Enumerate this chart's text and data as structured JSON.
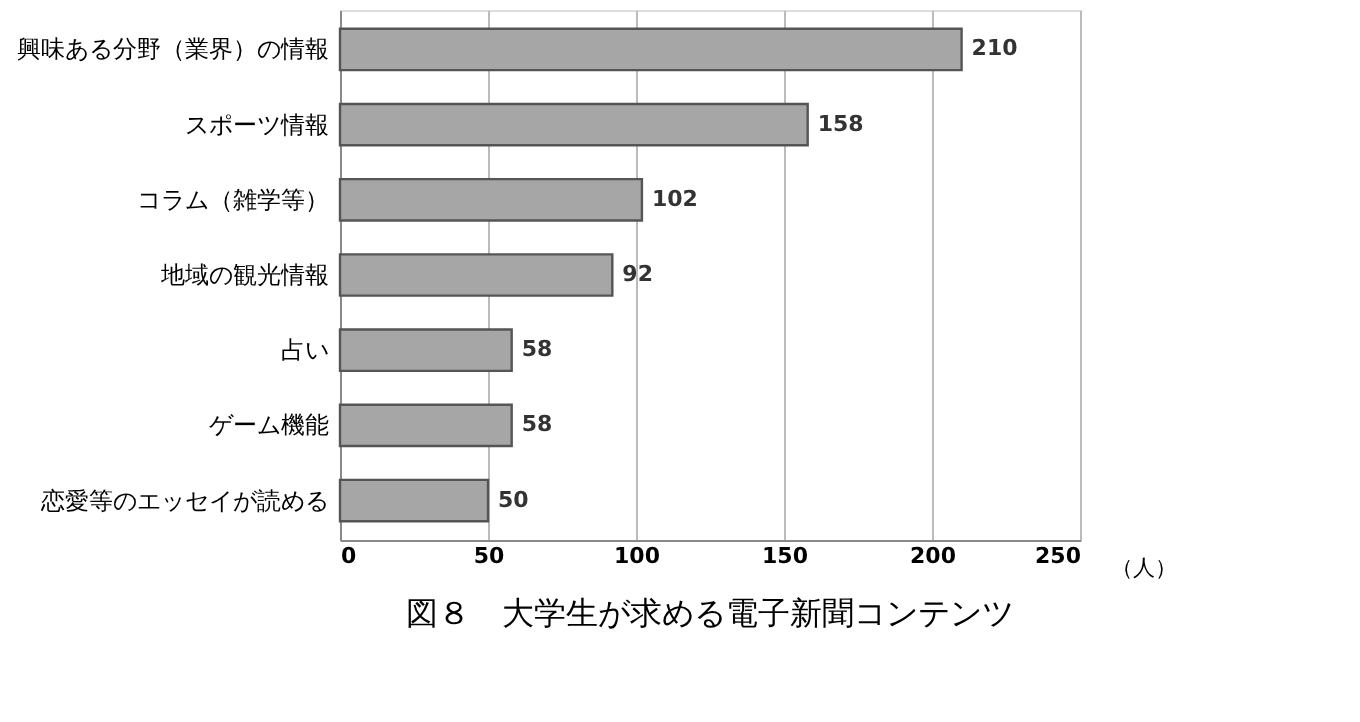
{
  "chart_data": {
    "type": "bar",
    "orientation": "horizontal",
    "title": "図８　大学生が求める電子新聞コンテンツ",
    "xlabel": "（人）",
    "categories": [
      "興味ある分野（業界）の情報",
      "スポーツ情報",
      "コラム（雑学等）",
      "地域の観光情報",
      "占い",
      "ゲーム機能",
      "恋愛等のエッセイが読める"
    ],
    "values": [
      210,
      158,
      102,
      92,
      58,
      58,
      50
    ],
    "color": "#a6a6a6",
    "xlim": [
      0,
      250
    ],
    "xticks": [
      0,
      50,
      100,
      150,
      200,
      250
    ],
    "grid": "x",
    "data_labels": true
  }
}
